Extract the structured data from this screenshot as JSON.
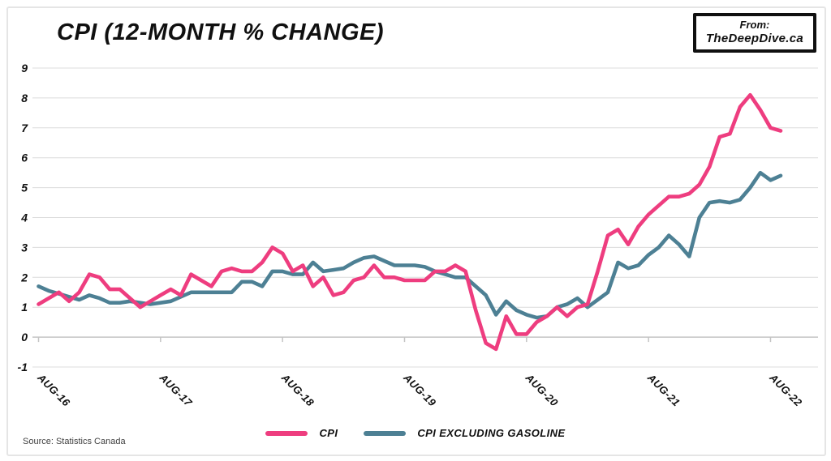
{
  "card": {
    "title": "CPI (12-MONTH % CHANGE)",
    "badge": {
      "line1": "From:",
      "line2": "TheDeepDive.ca"
    },
    "source": "Source: Statistics Canada"
  },
  "chart_data": {
    "type": "line",
    "title": "CPI (12-month % change)",
    "x_unit": "month",
    "x_range": [
      "Aug-2016",
      "Sep-2022"
    ],
    "x_tick_labels": [
      "AUG-16",
      "AUG-17",
      "AUG-18",
      "AUG-19",
      "AUG-20",
      "AUG-21",
      "AUG-22"
    ],
    "x_tick_month_index": [
      0,
      12,
      24,
      36,
      48,
      60,
      72
    ],
    "ylim": [
      -1,
      9
    ],
    "y_ticks": [
      9,
      8,
      7,
      6,
      5,
      4,
      3,
      2,
      1,
      0,
      -1
    ],
    "grid": "horizontal",
    "legend_position": "bottom",
    "colors": {
      "cpi": "#ee3d7f",
      "cpi_ex_gasoline": "#4d8094",
      "gridline": "#dcdcdc",
      "axis": "#c4c4c4"
    },
    "series": [
      {
        "name": "CPI",
        "color": "#ee3d7f",
        "values": [
          1.1,
          1.3,
          1.5,
          1.2,
          1.5,
          2.1,
          2.0,
          1.6,
          1.6,
          1.3,
          1.0,
          1.2,
          1.4,
          1.6,
          1.4,
          2.1,
          1.9,
          1.7,
          2.2,
          2.3,
          2.2,
          2.2,
          2.5,
          3.0,
          2.8,
          2.2,
          2.4,
          1.7,
          2.0,
          1.4,
          1.5,
          1.9,
          2.0,
          2.4,
          2.0,
          2.0,
          1.9,
          1.9,
          1.9,
          2.2,
          2.2,
          2.4,
          2.2,
          0.9,
          -0.2,
          -0.4,
          0.7,
          0.1,
          0.1,
          0.5,
          0.7,
          1.0,
          0.7,
          1.0,
          1.1,
          2.2,
          3.4,
          3.6,
          3.1,
          3.7,
          4.1,
          4.4,
          4.7,
          4.7,
          4.8,
          5.1,
          5.7,
          6.7,
          6.8,
          7.7,
          8.1,
          7.6,
          7.0,
          6.9
        ]
      },
      {
        "name": "CPI EXCLUDING GASOLINE",
        "color": "#4d8094",
        "values": [
          1.7,
          1.55,
          1.45,
          1.35,
          1.25,
          1.4,
          1.3,
          1.15,
          1.15,
          1.2,
          1.15,
          1.1,
          1.15,
          1.2,
          1.35,
          1.5,
          1.5,
          1.5,
          1.5,
          1.5,
          1.85,
          1.85,
          1.7,
          2.2,
          2.2,
          2.1,
          2.1,
          2.5,
          2.2,
          2.25,
          2.3,
          2.5,
          2.65,
          2.7,
          2.55,
          2.4,
          2.4,
          2.4,
          2.35,
          2.2,
          2.1,
          2.0,
          2.0,
          1.7,
          1.4,
          0.75,
          1.2,
          0.9,
          0.75,
          0.65,
          0.7,
          1.0,
          1.1,
          1.3,
          1.0,
          1.25,
          1.5,
          2.5,
          2.3,
          2.4,
          2.75,
          3.0,
          3.4,
          3.1,
          2.7,
          4.0,
          4.5,
          4.55,
          4.5,
          4.6,
          5.0,
          5.5,
          5.25,
          5.4
        ]
      }
    ]
  }
}
